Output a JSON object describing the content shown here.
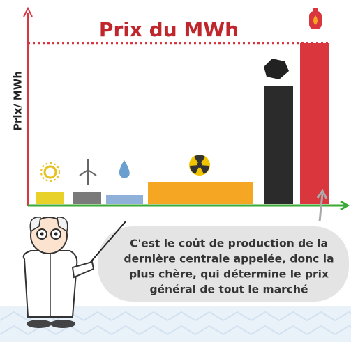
{
  "chart_data": {
    "type": "bar",
    "title": "Prix du MWh",
    "y_label": "Prix/ MWh",
    "categories": [
      null,
      null,
      null,
      null,
      null,
      null
    ],
    "values": [
      17,
      17,
      13,
      31,
      169,
      231
    ],
    "colors": [
      "#e8d22a",
      "#7a7a7a",
      "#8fb0d8",
      "#f5a623",
      "#2b2b2b",
      "#d9363e"
    ],
    "ylim": [
      0,
      240
    ],
    "annotation": [
      "C'est  le coût de production de la",
      "dernière centrale appelée, donc la",
      "plus chère, qui détermine le prix",
      "général de tout le marché"
    ]
  }
}
